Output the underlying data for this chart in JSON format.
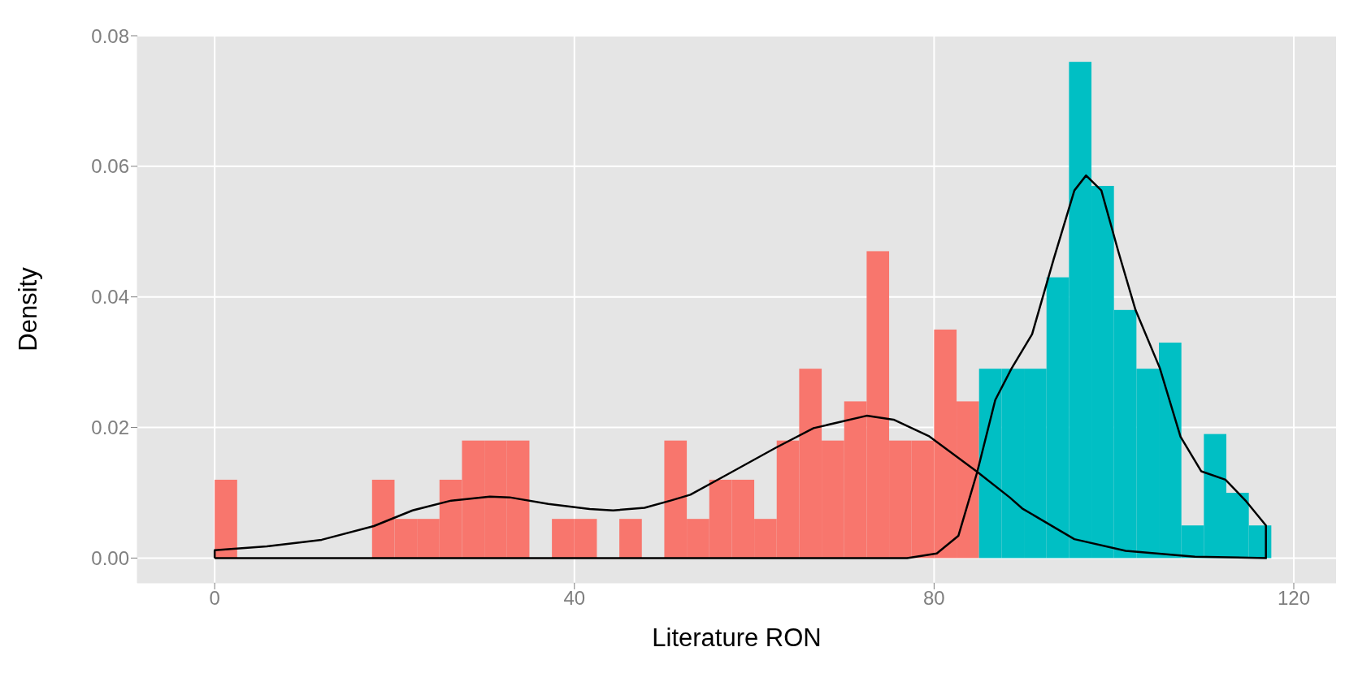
{
  "chart_data": {
    "type": "histogram",
    "xlabel": "Literature RON",
    "ylabel": "Density",
    "bins": [
      0,
      2.5,
      5,
      7.5,
      10,
      12.5,
      15,
      17.5,
      20,
      22.5,
      25,
      27.5,
      30,
      32.5,
      35,
      37.5,
      40,
      42.5,
      45,
      47.5,
      50,
      52.5,
      55,
      57.5,
      60,
      62.5,
      65,
      67.5,
      70,
      72.5,
      75,
      77.5,
      80,
      82.5,
      85,
      87.5,
      90,
      92.5,
      95,
      97.5,
      100,
      102.5,
      105,
      107.5,
      110,
      112.5,
      115,
      117.5
    ],
    "series": [
      {
        "color": "#f8766d",
        "values": [
          0.012,
          0,
          0,
          0,
          0,
          0,
          0,
          0.012,
          0.006,
          0.006,
          0.012,
          0.018,
          0.018,
          0.018,
          0,
          0.006,
          0.006,
          0,
          0.006,
          0,
          0.018,
          0.006,
          0.012,
          0.012,
          0.006,
          0.018,
          0.029,
          0.018,
          0.024,
          0.047,
          0.018,
          0.018,
          0.035,
          0.024,
          null,
          null,
          null,
          null,
          null,
          null,
          null,
          null,
          null,
          null,
          null,
          null,
          null
        ]
      },
      {
        "color": "#00bfc4",
        "values": [
          null,
          null,
          null,
          null,
          null,
          null,
          null,
          null,
          null,
          null,
          null,
          null,
          null,
          null,
          null,
          null,
          null,
          null,
          null,
          null,
          null,
          null,
          null,
          null,
          null,
          null,
          null,
          null,
          null,
          null,
          null,
          null,
          null,
          null,
          0.029,
          0.029,
          0.029,
          0.043,
          0.076,
          0.057,
          0.038,
          0.029,
          0.033,
          0.005,
          0.019,
          0.01,
          0.005
        ]
      },
      {
        "type": "line",
        "color": "#000000",
        "x": [
          0,
          0,
          5.8,
          11.9,
          17.7,
          22,
          26.3,
          30.6,
          32.8,
          37.1,
          41.7,
          44.3,
          47.8,
          50.7,
          52.9,
          57,
          62.4,
          66.6,
          72.5,
          75.5,
          79.4,
          84.8,
          88.4,
          89.8,
          95.6,
          101.3,
          109,
          117
        ],
        "values": [
          0,
          0.0012,
          0.0018,
          0.0028,
          0.0049,
          0.0073,
          0.0088,
          0.0094,
          0.0093,
          0.0083,
          0.0075,
          0.0073,
          0.0077,
          0.0088,
          0.0097,
          0.0128,
          0.0169,
          0.0199,
          0.0218,
          0.0212,
          0.0187,
          0.0132,
          0.0093,
          0.0076,
          0.0029,
          0.0011,
          0.0002,
          0
        ]
      },
      {
        "type": "line",
        "color": "#000000",
        "x": [
          0,
          77,
          80.3,
          82.7,
          84.8,
          86.8,
          88.6,
          90.9,
          93.3,
          95.6,
          96.9,
          98.6,
          100.5,
          102.4,
          105.1,
          107.4,
          109.7,
          112.4,
          114.7,
          116.9,
          116.9
        ],
        "values": [
          0,
          0,
          0.0007,
          0.0034,
          0.0132,
          0.0242,
          0.029,
          0.0343,
          0.0458,
          0.0563,
          0.0586,
          0.0563,
          0.0469,
          0.038,
          0.0291,
          0.0186,
          0.0133,
          0.012,
          0.0087,
          0.005,
          0
        ]
      }
    ],
    "xlim": [
      -8.6,
      124.7
    ],
    "xticks": [
      0,
      40,
      80,
      120
    ],
    "ylim": [
      -0.0038,
      0.08
    ],
    "yticks": [
      {
        "value": 0,
        "label": "0.00"
      },
      {
        "value": 0.02,
        "label": "0.02"
      },
      {
        "value": 0.04,
        "label": "0.04"
      },
      {
        "value": 0.06,
        "label": "0.06"
      },
      {
        "value": 0.08,
        "label": "0.08"
      }
    ],
    "grid": true
  }
}
